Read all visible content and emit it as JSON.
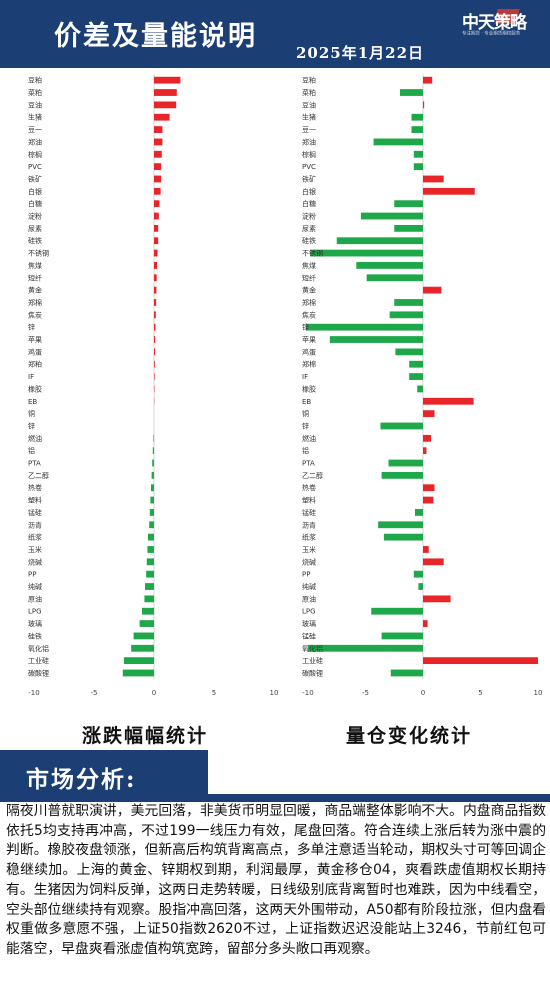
{
  "header": {
    "title": "价差及量能说明",
    "date": "2025年1月22日",
    "logo_text": "中天策略",
    "logo_sub": "专注期货 · 专业期货期权服务"
  },
  "chart_data": [
    {
      "type": "bar",
      "orientation": "horizontal",
      "title": "涨跌幅幅统计",
      "xlim": [
        -10,
        10
      ],
      "xticks": [
        -10,
        -5,
        0,
        5,
        10
      ],
      "positive_color": "#e8262a",
      "negative_color": "#1fa84a",
      "categories": [
        "豆粕",
        "菜粕",
        "豆油",
        "生猪",
        "豆一",
        "郑油",
        "棕榈",
        "PVC",
        "铁矿",
        "白银",
        "白糖",
        "淀粉",
        "尿素",
        "硅铁",
        "不锈钢",
        "焦煤",
        "短纤",
        "黄金",
        "郑棉",
        "焦炭",
        "锌",
        "苹果",
        "鸡蛋",
        "郑粕",
        "IF",
        "橡胶",
        "EB",
        "铜",
        "锌",
        "燃油",
        "铝",
        "PTA",
        "乙二醇",
        "热卷",
        "塑料",
        "锰硅",
        "沥青",
        "纸浆",
        "玉米",
        "烧碱",
        "PP",
        "纯碱",
        "原油",
        "LPG",
        "玻璃",
        "硅铁",
        "氧化铝",
        "工业硅",
        "碳酸锂"
      ],
      "values": [
        2.2,
        1.9,
        1.85,
        1.3,
        0.7,
        0.7,
        0.65,
        0.6,
        0.6,
        0.55,
        0.45,
        0.4,
        0.35,
        0.35,
        0.3,
        0.25,
        0.22,
        0.2,
        0.18,
        0.15,
        0.12,
        0.1,
        0.08,
        0.07,
        0.05,
        0.04,
        0.02,
        0.0,
        0.0,
        -0.05,
        -0.1,
        -0.15,
        -0.2,
        -0.25,
        -0.3,
        -0.35,
        -0.4,
        -0.5,
        -0.55,
        -0.6,
        -0.65,
        -0.75,
        -0.8,
        -1.0,
        -1.2,
        -1.7,
        -1.9,
        -2.5,
        -2.6
      ]
    },
    {
      "type": "bar",
      "orientation": "horizontal",
      "title": "量仓变化统计",
      "xlim": [
        -10,
        10
      ],
      "xticks": [
        -10,
        -5,
        0,
        5,
        10
      ],
      "positive_color": "#e8262a",
      "negative_color": "#1fa84a",
      "categories": [
        "豆粕",
        "菜粕",
        "豆油",
        "生猪",
        "豆一",
        "郑油",
        "棕榈",
        "PVC",
        "铁矿",
        "白银",
        "白糖",
        "淀粉",
        "尿素",
        "硅铁",
        "不锈钢",
        "焦煤",
        "短纤",
        "黄金",
        "郑棉",
        "焦炭",
        "锌",
        "苹果",
        "鸡蛋",
        "郑棉",
        "IF",
        "橡胶",
        "EB",
        "铜",
        "锌",
        "燃油",
        "铝",
        "PTA",
        "乙二醇",
        "热卷",
        "塑料",
        "锰硅",
        "沥青",
        "纸浆",
        "玉米",
        "烧碱",
        "PP",
        "纯碱",
        "原油",
        "LPG",
        "玻璃",
        "锰硅",
        "氧化铝",
        "工业硅",
        "碳酸锂"
      ],
      "values": [
        0.8,
        -2.0,
        0.1,
        -1.0,
        -1.0,
        -4.3,
        -0.8,
        -0.8,
        1.8,
        4.5,
        -2.5,
        -5.4,
        -2.5,
        -7.5,
        -9.8,
        -5.8,
        -4.9,
        1.6,
        -2.5,
        -2.9,
        -10.2,
        -8.1,
        -2.4,
        -1.2,
        -1.2,
        -0.5,
        4.4,
        1.0,
        -3.7,
        0.7,
        0.3,
        -3.0,
        -3.6,
        1.0,
        0.9,
        -0.7,
        -3.9,
        -3.4,
        0.5,
        1.8,
        -0.8,
        -0.4,
        2.4,
        -4.5,
        0.4,
        -3.6,
        -10.0,
        10.0,
        -2.8
      ]
    }
  ],
  "analysis": {
    "title": "市场分析:",
    "text": "隔夜川普就职演讲，美元回落，非美货币明显回暖，商品端整体影响不大。内盘商品指数依托5均支持再冲高，不过199一线压力有效，尾盘回落。符合连续上涨后转为涨中震的判断。橡胶夜盘领涨，但新高后构筑背离高点，多单注意适当轮动，期权头寸可等回调企稳继续加。上海的黄金、锌期权到期，利润最厚，黄金移仓04，爽看跌虚值期权长期持有。生猪因为饲料反弹，这两日走势转暖，日线级别底背离暂时也难跌，因为中线看空，空头部位继续持有观察。股指冲高回落，这两天外围带动，A50都有阶段拉涨，但内盘看权重做多意愿不强，上证50指数2620不过，上证指数迟迟没能站上3246，节前红包可能落空，早盘爽看涨虚值构筑宽跨，留部分多头敞口再观察。"
  }
}
